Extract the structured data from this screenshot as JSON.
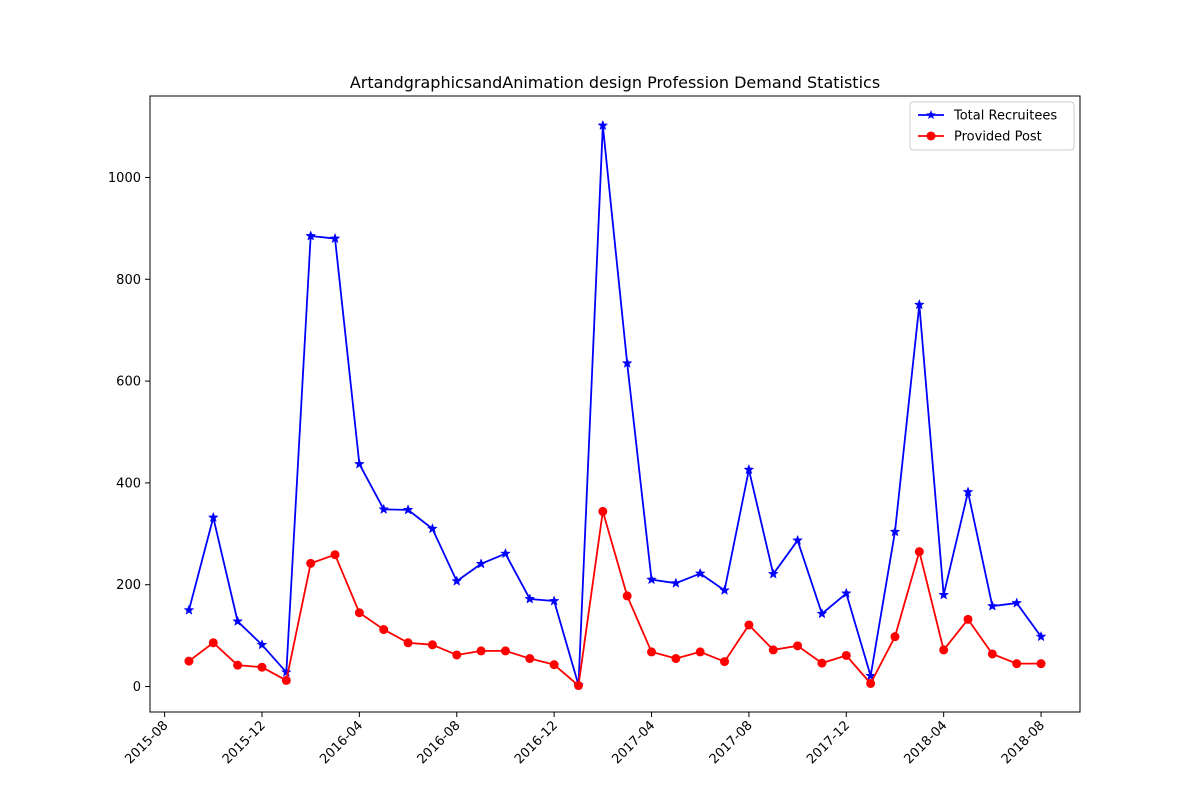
{
  "chart_data": {
    "type": "line",
    "title": "ArtandgraphicsandAnimation design Profession Demand Statistics",
    "xlabel": "",
    "ylabel": "",
    "x": [
      "2015-09",
      "2015-10",
      "2015-11",
      "2015-12",
      "2016-01",
      "2016-02",
      "2016-03",
      "2016-04",
      "2016-05",
      "2016-06",
      "2016-07",
      "2016-08",
      "2016-09",
      "2016-10",
      "2016-11",
      "2016-12",
      "2017-01",
      "2017-02",
      "2017-03",
      "2017-04",
      "2017-05",
      "2017-06",
      "2017-07",
      "2017-08",
      "2017-09",
      "2017-10",
      "2017-11",
      "2017-12",
      "2018-01",
      "2018-02",
      "2018-03",
      "2018-04",
      "2018-05",
      "2018-06",
      "2018-07",
      "2018-08"
    ],
    "x_ticks": [
      "2015-08",
      "2015-12",
      "2016-04",
      "2016-08",
      "2016-12",
      "2017-04",
      "2017-08",
      "2017-12",
      "2018-04",
      "2018-08"
    ],
    "y_ticks": [
      0,
      200,
      400,
      600,
      800,
      1000
    ],
    "ylim": [
      -50,
      1160
    ],
    "grid": false,
    "legend_position": "top-right",
    "series": [
      {
        "name": "Total Recruitees",
        "color": "#0000ff",
        "marker": "star",
        "values": [
          150,
          332,
          128,
          82,
          28,
          885,
          880,
          437,
          348,
          347,
          310,
          207,
          241,
          261,
          172,
          168,
          3,
          1102,
          635,
          210,
          203,
          222,
          189,
          426,
          221,
          287,
          143,
          183,
          21,
          304,
          750,
          180,
          382,
          158,
          164,
          98
        ]
      },
      {
        "name": "Provided Post",
        "color": "#ff0000",
        "marker": "circle",
        "values": [
          50,
          86,
          42,
          38,
          12,
          242,
          259,
          145,
          112,
          86,
          82,
          62,
          70,
          70,
          55,
          43,
          2,
          344,
          178,
          68,
          55,
          68,
          49,
          121,
          72,
          80,
          46,
          61,
          6,
          98,
          265,
          72,
          132,
          64,
          45,
          45
        ]
      }
    ]
  }
}
